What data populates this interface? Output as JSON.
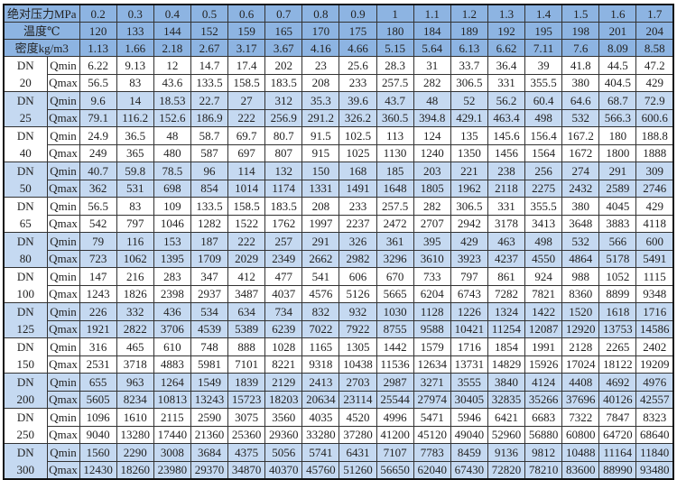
{
  "header": {
    "pressure_label": "绝对压力MPa",
    "temperature_label": "温度℃",
    "density_label": "密度kg/m3",
    "pressure": [
      "0.2",
      "0.3",
      "0.4",
      "0.5",
      "0.6",
      "0.7",
      "0.8",
      "0.9",
      "1",
      "1.1",
      "1.2",
      "1.3",
      "1.4",
      "1.5",
      "1.6",
      "1.7"
    ],
    "temperature": [
      "120",
      "133",
      "144",
      "152",
      "159",
      "165",
      "170",
      "175",
      "180",
      "184",
      "189",
      "192",
      "195",
      "198",
      "201",
      "204"
    ],
    "density": [
      "1.13",
      "1.66",
      "2.18",
      "2.67",
      "3.17",
      "3.67",
      "4.16",
      "4.66",
      "5.15",
      "5.64",
      "6.13",
      "6.62",
      "7.11",
      "7.6",
      "8.09",
      "8.58"
    ]
  },
  "dn_prefix": "DN",
  "qmin_label": "Qmin",
  "qmax_label": "Qmax",
  "colors": {
    "header_bg": "#8db4e2",
    "shade_bg": "#c5d9f1"
  },
  "groups": [
    {
      "dn": "20",
      "qmin": [
        "6.22",
        "9.13",
        "12",
        "14.7",
        "17.4",
        "202",
        "23",
        "25.6",
        "28.3",
        "31",
        "33.7",
        "36.4",
        "39",
        "41.8",
        "44.5",
        "47.2"
      ],
      "qmax": [
        "56.5",
        "83",
        "43.6",
        "133.5",
        "158.5",
        "183.5",
        "208",
        "233",
        "257.5",
        "282",
        "306.5",
        "331",
        "355.5",
        "380",
        "404.5",
        "429"
      ]
    },
    {
      "dn": "25",
      "qmin": [
        "9.6",
        "14",
        "18.53",
        "22.7",
        "27",
        "312",
        "35.3",
        "39.6",
        "43.7",
        "48",
        "52",
        "56.2",
        "60.4",
        "64.6",
        "68.7",
        "72.9"
      ],
      "qmax": [
        "79.1",
        "116.2",
        "152.6",
        "186.9",
        "222",
        "256.9",
        "291.2",
        "326.2",
        "360.5",
        "394.8",
        "429.1",
        "463.4",
        "498",
        "532",
        "566.3",
        "600.6"
      ]
    },
    {
      "dn": "40",
      "qmin": [
        "24.9",
        "36.5",
        "48",
        "58.7",
        "69.7",
        "80.7",
        "91.5",
        "102.5",
        "113",
        "124",
        "135",
        "145.6",
        "156.4",
        "167.2",
        "180",
        "188.8"
      ],
      "qmax": [
        "249",
        "365",
        "480",
        "587",
        "697",
        "807",
        "915",
        "1025",
        "1130",
        "1240",
        "1350",
        "1456",
        "1564",
        "1672",
        "1800",
        "1888"
      ]
    },
    {
      "dn": "50",
      "qmin": [
        "40.7",
        "59.8",
        "78.5",
        "96",
        "114",
        "132",
        "150",
        "168",
        "185",
        "203",
        "221",
        "238",
        "256",
        "274",
        "291",
        "309"
      ],
      "qmax": [
        "362",
        "531",
        "698",
        "854",
        "1014",
        "1174",
        "1331",
        "1491",
        "1648",
        "1805",
        "1962",
        "2118",
        "2275",
        "2432",
        "2589",
        "2746"
      ]
    },
    {
      "dn": "65",
      "qmin": [
        "56.5",
        "83",
        "109",
        "133.5",
        "158.5",
        "183.5",
        "208",
        "233",
        "257.5",
        "282",
        "306.5",
        "331",
        "355.5",
        "380",
        "4045",
        "429"
      ],
      "qmax": [
        "542",
        "797",
        "1046",
        "1282",
        "1522",
        "1762",
        "1997",
        "2237",
        "2472",
        "2707",
        "2942",
        "3178",
        "3413",
        "3648",
        "3883",
        "4118"
      ]
    },
    {
      "dn": "80",
      "qmin": [
        "79",
        "116",
        "153",
        "187",
        "222",
        "257",
        "291",
        "326",
        "361",
        "395",
        "429",
        "463",
        "498",
        "532",
        "566",
        "600"
      ],
      "qmax": [
        "723",
        "1062",
        "1395",
        "1709",
        "2029",
        "2349",
        "2662",
        "2982",
        "3296",
        "3610",
        "3923",
        "4237",
        "4550",
        "4864",
        "5178",
        "5491"
      ]
    },
    {
      "dn": "100",
      "qmin": [
        "147",
        "216",
        "283",
        "347",
        "412",
        "477",
        "541",
        "606",
        "670",
        "733",
        "797",
        "861",
        "924",
        "988",
        "1052",
        "1115"
      ],
      "qmax": [
        "1243",
        "1826",
        "2398",
        "2937",
        "3487",
        "4037",
        "4576",
        "5126",
        "5665",
        "6204",
        "6743",
        "7282",
        "7821",
        "8360",
        "8899",
        "9348"
      ]
    },
    {
      "dn": "125",
      "qmin": [
        "226",
        "332",
        "436",
        "534",
        "634",
        "734",
        "832",
        "932",
        "1030",
        "1128",
        "1226",
        "1324",
        "1422",
        "1520",
        "1618",
        "1716"
      ],
      "qmax": [
        "1921",
        "2822",
        "3706",
        "4539",
        "5389",
        "6239",
        "7022",
        "7922",
        "8755",
        "9588",
        "10421",
        "11254",
        "12087",
        "12920",
        "13753",
        "14586"
      ]
    },
    {
      "dn": "150",
      "qmin": [
        "316",
        "465",
        "610",
        "748",
        "888",
        "1028",
        "1165",
        "1305",
        "1442",
        "1579",
        "1716",
        "1854",
        "1991",
        "2128",
        "2265",
        "2402"
      ],
      "qmax": [
        "2531",
        "3718",
        "4883",
        "5981",
        "7101",
        "8221",
        "9318",
        "10438",
        "11536",
        "12634",
        "13731",
        "14829",
        "15926",
        "17024",
        "18122",
        "19209"
      ]
    },
    {
      "dn": "200",
      "qmin": [
        "655",
        "963",
        "1264",
        "1549",
        "1839",
        "2129",
        "2413",
        "2703",
        "2987",
        "3271",
        "3555",
        "3840",
        "4124",
        "4408",
        "4692",
        "4976"
      ],
      "qmax": [
        "5605",
        "8234",
        "10813",
        "13243",
        "15723",
        "18203",
        "20634",
        "23114",
        "25544",
        "27974",
        "30405",
        "32835",
        "35266",
        "37696",
        "40126",
        "42557"
      ]
    },
    {
      "dn": "250",
      "qmin": [
        "1096",
        "1610",
        "2115",
        "2590",
        "3075",
        "3560",
        "4035",
        "4520",
        "4996",
        "5471",
        "5946",
        "6421",
        "6683",
        "7322",
        "7847",
        "8323"
      ],
      "qmax": [
        "9040",
        "13280",
        "17440",
        "21360",
        "25360",
        "29360",
        "33280",
        "37280",
        "41200",
        "45120",
        "49040",
        "52960",
        "56880",
        "60800",
        "64720",
        "68640"
      ]
    },
    {
      "dn": "300",
      "qmin": [
        "1560",
        "2290",
        "3008",
        "3684",
        "4375",
        "5056",
        "5741",
        "6431",
        "7107",
        "7783",
        "8459",
        "9136",
        "9812",
        "10488",
        "11164",
        "11840"
      ],
      "qmax": [
        "12430",
        "18260",
        "23980",
        "29370",
        "34870",
        "40370",
        "45760",
        "51260",
        "56650",
        "62040",
        "67430",
        "72820",
        "78210",
        "83600",
        "88990",
        "93480"
      ]
    }
  ]
}
